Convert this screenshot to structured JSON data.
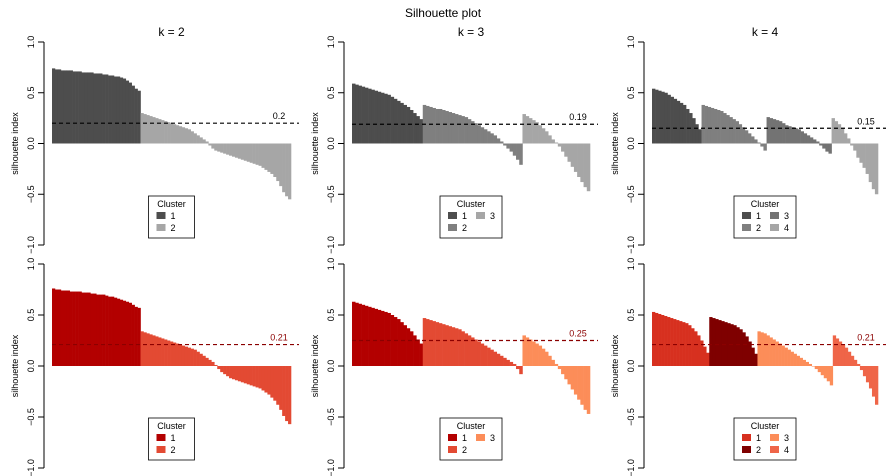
{
  "main_title": "Silhouette plot",
  "chart_data": [
    {
      "type": "bar",
      "title": "k = 2",
      "ylabel": "silhouette index",
      "ylim": [
        -1,
        1
      ],
      "yticks": [
        1.0,
        0.5,
        0.0,
        -0.5,
        -1.0
      ],
      "ytick_labels": [
        "1.0",
        "0.5",
        "0.0",
        "−0.5",
        "−1.0"
      ],
      "mean_line": 0.2,
      "mean_label": "0.2",
      "mean_color": "#000000",
      "legend": {
        "title": "Cluster",
        "position": "bottom-center",
        "ncol": 1
      },
      "series": [
        {
          "name": "1",
          "color": "#4d4d4d",
          "values": [
            0.74,
            0.73,
            0.73,
            0.72,
            0.72,
            0.72,
            0.72,
            0.71,
            0.71,
            0.71,
            0.7,
            0.7,
            0.7,
            0.7,
            0.69,
            0.69,
            0.69,
            0.68,
            0.68,
            0.67,
            0.67,
            0.66,
            0.66,
            0.65,
            0.64,
            0.62,
            0.6,
            0.57,
            0.54,
            0.52
          ]
        },
        {
          "name": "2",
          "color": "#a6a6a6",
          "values": [
            0.3,
            0.29,
            0.28,
            0.27,
            0.26,
            0.25,
            0.24,
            0.23,
            0.22,
            0.21,
            0.2,
            0.19,
            0.18,
            0.17,
            0.16,
            0.15,
            0.14,
            0.12,
            0.1,
            0.08,
            0.06,
            0.04,
            0.02,
            -0.02,
            -0.05,
            -0.07,
            -0.08,
            -0.09,
            -0.1,
            -0.11,
            -0.12,
            -0.13,
            -0.14,
            -0.15,
            -0.16,
            -0.17,
            -0.18,
            -0.19,
            -0.2,
            -0.21,
            -0.22,
            -0.24,
            -0.26,
            -0.28,
            -0.3,
            -0.33,
            -0.37,
            -0.42,
            -0.48,
            -0.52,
            -0.55
          ]
        }
      ]
    },
    {
      "type": "bar",
      "title": "k = 3",
      "ylabel": "silhouette index",
      "ylim": [
        -1,
        1
      ],
      "yticks": [
        1.0,
        0.5,
        0.0,
        -0.5,
        -1.0
      ],
      "ytick_labels": [
        "1.0",
        "0.5",
        "0.0",
        "−0.5",
        "−1.0"
      ],
      "mean_line": 0.19,
      "mean_label": "0.19",
      "mean_color": "#000000",
      "legend": {
        "title": "Cluster",
        "position": "bottom-center",
        "ncol": 2
      },
      "series": [
        {
          "name": "1",
          "color": "#4d4d4d",
          "values": [
            0.59,
            0.58,
            0.57,
            0.56,
            0.55,
            0.54,
            0.53,
            0.52,
            0.51,
            0.5,
            0.49,
            0.48,
            0.46,
            0.44,
            0.42,
            0.4,
            0.38,
            0.36,
            0.33,
            0.3,
            0.27,
            0.24
          ]
        },
        {
          "name": "2",
          "color": "#7f7f7f",
          "values": [
            0.38,
            0.37,
            0.36,
            0.35,
            0.34,
            0.34,
            0.33,
            0.32,
            0.31,
            0.3,
            0.29,
            0.28,
            0.27,
            0.26,
            0.24,
            0.22,
            0.2,
            0.18,
            0.16,
            0.14,
            0.12,
            0.1,
            0.08,
            0.05,
            0.02,
            -0.02,
            -0.05,
            -0.08,
            -0.12,
            -0.16,
            -0.21
          ]
        },
        {
          "name": "3",
          "color": "#a6a6a6",
          "values": [
            0.29,
            0.27,
            0.25,
            0.23,
            0.21,
            0.18,
            0.15,
            0.12,
            0.08,
            0.04,
            0.01,
            -0.03,
            -0.08,
            -0.13,
            -0.18,
            -0.23,
            -0.28,
            -0.33,
            -0.38,
            -0.43,
            -0.47
          ]
        }
      ]
    },
    {
      "type": "bar",
      "title": "k = 4",
      "ylabel": "silhouette index",
      "ylim": [
        -1,
        1
      ],
      "yticks": [
        1.0,
        0.5,
        0.0,
        -0.5,
        -1.0
      ],
      "ytick_labels": [
        "1.0",
        "0.5",
        "0.0",
        "−0.5",
        "−1.0"
      ],
      "mean_line": 0.15,
      "mean_label": "0.15",
      "mean_color": "#000000",
      "legend": {
        "title": "Cluster",
        "position": "bottom-center",
        "ncol": 2
      },
      "series": [
        {
          "name": "1",
          "color": "#4d4d4d",
          "values": [
            0.54,
            0.53,
            0.52,
            0.51,
            0.5,
            0.48,
            0.46,
            0.44,
            0.42,
            0.4,
            0.38,
            0.34,
            0.3,
            0.25,
            0.19,
            0.14
          ]
        },
        {
          "name": "2",
          "color": "#7f7f7f",
          "values": [
            0.38,
            0.37,
            0.36,
            0.35,
            0.34,
            0.33,
            0.32,
            0.3,
            0.28,
            0.26,
            0.24,
            0.22,
            0.19,
            0.16,
            0.13,
            0.1,
            0.07,
            0.04,
            0.01,
            -0.03,
            -0.07
          ]
        },
        {
          "name": "3",
          "color": "#737373",
          "values": [
            0.26,
            0.25,
            0.24,
            0.23,
            0.22,
            0.2,
            0.18,
            0.17,
            0.16,
            0.15,
            0.14,
            0.12,
            0.1,
            0.08,
            0.06,
            0.04,
            0.02,
            -0.02,
            -0.05,
            -0.08,
            -0.1
          ]
        },
        {
          "name": "4",
          "color": "#a6a6a6",
          "values": [
            0.25,
            0.22,
            0.19,
            0.15,
            0.1,
            0.05,
            -0.02,
            -0.07,
            -0.14,
            -0.19,
            -0.24,
            -0.3,
            -0.38,
            -0.45,
            -0.5
          ]
        }
      ]
    },
    {
      "type": "bar",
      "title": "",
      "ylabel": "silhouette index",
      "ylim": [
        -1,
        1
      ],
      "yticks": [
        1.0,
        0.5,
        0.0,
        -0.5,
        -1.0
      ],
      "ytick_labels": [
        "1.0",
        "0.5",
        "0.0",
        "−0.5",
        "−1.0"
      ],
      "mean_line": 0.21,
      "mean_label": "0.21",
      "mean_color": "#8b0000",
      "legend": {
        "title": "Cluster",
        "position": "bottom-center",
        "ncol": 1
      },
      "series": [
        {
          "name": "1",
          "color": "#b30000",
          "values": [
            0.76,
            0.75,
            0.75,
            0.74,
            0.74,
            0.74,
            0.73,
            0.73,
            0.73,
            0.73,
            0.72,
            0.72,
            0.72,
            0.71,
            0.71,
            0.7,
            0.7,
            0.7,
            0.69,
            0.68,
            0.68,
            0.67,
            0.66,
            0.65,
            0.64,
            0.63,
            0.62,
            0.6,
            0.58,
            0.57
          ]
        },
        {
          "name": "2",
          "color": "#e34a33",
          "values": [
            0.34,
            0.33,
            0.32,
            0.31,
            0.3,
            0.29,
            0.28,
            0.27,
            0.26,
            0.25,
            0.24,
            0.23,
            0.22,
            0.21,
            0.2,
            0.19,
            0.18,
            0.17,
            0.16,
            0.14,
            0.12,
            0.1,
            0.08,
            0.06,
            0.04,
            0.01,
            -0.03,
            -0.06,
            -0.08,
            -0.1,
            -0.12,
            -0.13,
            -0.14,
            -0.15,
            -0.16,
            -0.17,
            -0.18,
            -0.19,
            -0.2,
            -0.21,
            -0.22,
            -0.24,
            -0.26,
            -0.28,
            -0.31,
            -0.34,
            -0.38,
            -0.43,
            -0.49,
            -0.54,
            -0.57
          ]
        }
      ]
    },
    {
      "type": "bar",
      "title": "",
      "ylabel": "silhouette index",
      "ylim": [
        -1,
        1
      ],
      "yticks": [
        1.0,
        0.5,
        0.0,
        -0.5,
        -1.0
      ],
      "ytick_labels": [
        "1.0",
        "0.5",
        "0.0",
        "−0.5",
        "−1.0"
      ],
      "mean_line": 0.25,
      "mean_label": "0.25",
      "mean_color": "#8b0000",
      "legend": {
        "title": "Cluster",
        "position": "bottom-center",
        "ncol": 2
      },
      "series": [
        {
          "name": "1",
          "color": "#b30000",
          "values": [
            0.63,
            0.62,
            0.61,
            0.6,
            0.59,
            0.58,
            0.57,
            0.56,
            0.55,
            0.54,
            0.53,
            0.52,
            0.5,
            0.48,
            0.46,
            0.43,
            0.4,
            0.37,
            0.34,
            0.3,
            0.26,
            0.22
          ]
        },
        {
          "name": "2",
          "color": "#e34a33",
          "values": [
            0.47,
            0.46,
            0.45,
            0.44,
            0.43,
            0.42,
            0.41,
            0.4,
            0.39,
            0.38,
            0.37,
            0.36,
            0.34,
            0.32,
            0.3,
            0.28,
            0.26,
            0.24,
            0.22,
            0.2,
            0.18,
            0.16,
            0.14,
            0.12,
            0.1,
            0.08,
            0.06,
            0.04,
            0.02,
            -0.03,
            -0.08
          ]
        },
        {
          "name": "3",
          "color": "#fc8d59",
          "values": [
            0.3,
            0.28,
            0.26,
            0.24,
            0.22,
            0.2,
            0.17,
            0.14,
            0.1,
            0.06,
            0.02,
            -0.03,
            -0.08,
            -0.13,
            -0.18,
            -0.23,
            -0.28,
            -0.33,
            -0.38,
            -0.43,
            -0.47
          ]
        }
      ]
    },
    {
      "type": "bar",
      "title": "",
      "ylabel": "silhouette index",
      "ylim": [
        -1,
        1
      ],
      "yticks": [
        1.0,
        0.5,
        0.0,
        -0.5,
        -1.0
      ],
      "ytick_labels": [
        "1.0",
        "0.5",
        "0.0",
        "−0.5",
        "−1.0"
      ],
      "mean_line": 0.21,
      "mean_label": "0.21",
      "mean_color": "#8b0000",
      "legend": {
        "title": "Cluster",
        "position": "bottom-center",
        "ncol": 2
      },
      "series": [
        {
          "name": "1",
          "color": "#d7301f",
          "values": [
            0.53,
            0.52,
            0.51,
            0.5,
            0.49,
            0.48,
            0.47,
            0.46,
            0.45,
            0.44,
            0.43,
            0.42,
            0.4,
            0.37,
            0.34,
            0.3,
            0.25,
            0.19,
            0.13
          ]
        },
        {
          "name": "2",
          "color": "#7f0000",
          "values": [
            0.48,
            0.47,
            0.46,
            0.45,
            0.44,
            0.43,
            0.42,
            0.41,
            0.4,
            0.38,
            0.36,
            0.33,
            0.29,
            0.24,
            0.18,
            0.12
          ]
        },
        {
          "name": "3",
          "color": "#fc8d59",
          "values": [
            0.34,
            0.33,
            0.32,
            0.3,
            0.28,
            0.26,
            0.24,
            0.22,
            0.2,
            0.18,
            0.16,
            0.14,
            0.12,
            0.1,
            0.08,
            0.06,
            0.04,
            0.02,
            0.0,
            -0.03,
            -0.06,
            -0.09,
            -0.12,
            -0.15,
            -0.19
          ]
        },
        {
          "name": "4",
          "color": "#ef6548",
          "values": [
            0.3,
            0.27,
            0.24,
            0.21,
            0.18,
            0.14,
            0.1,
            0.06,
            0.02,
            -0.04,
            -0.1,
            -0.16,
            -0.22,
            -0.3,
            -0.38
          ]
        }
      ]
    }
  ]
}
